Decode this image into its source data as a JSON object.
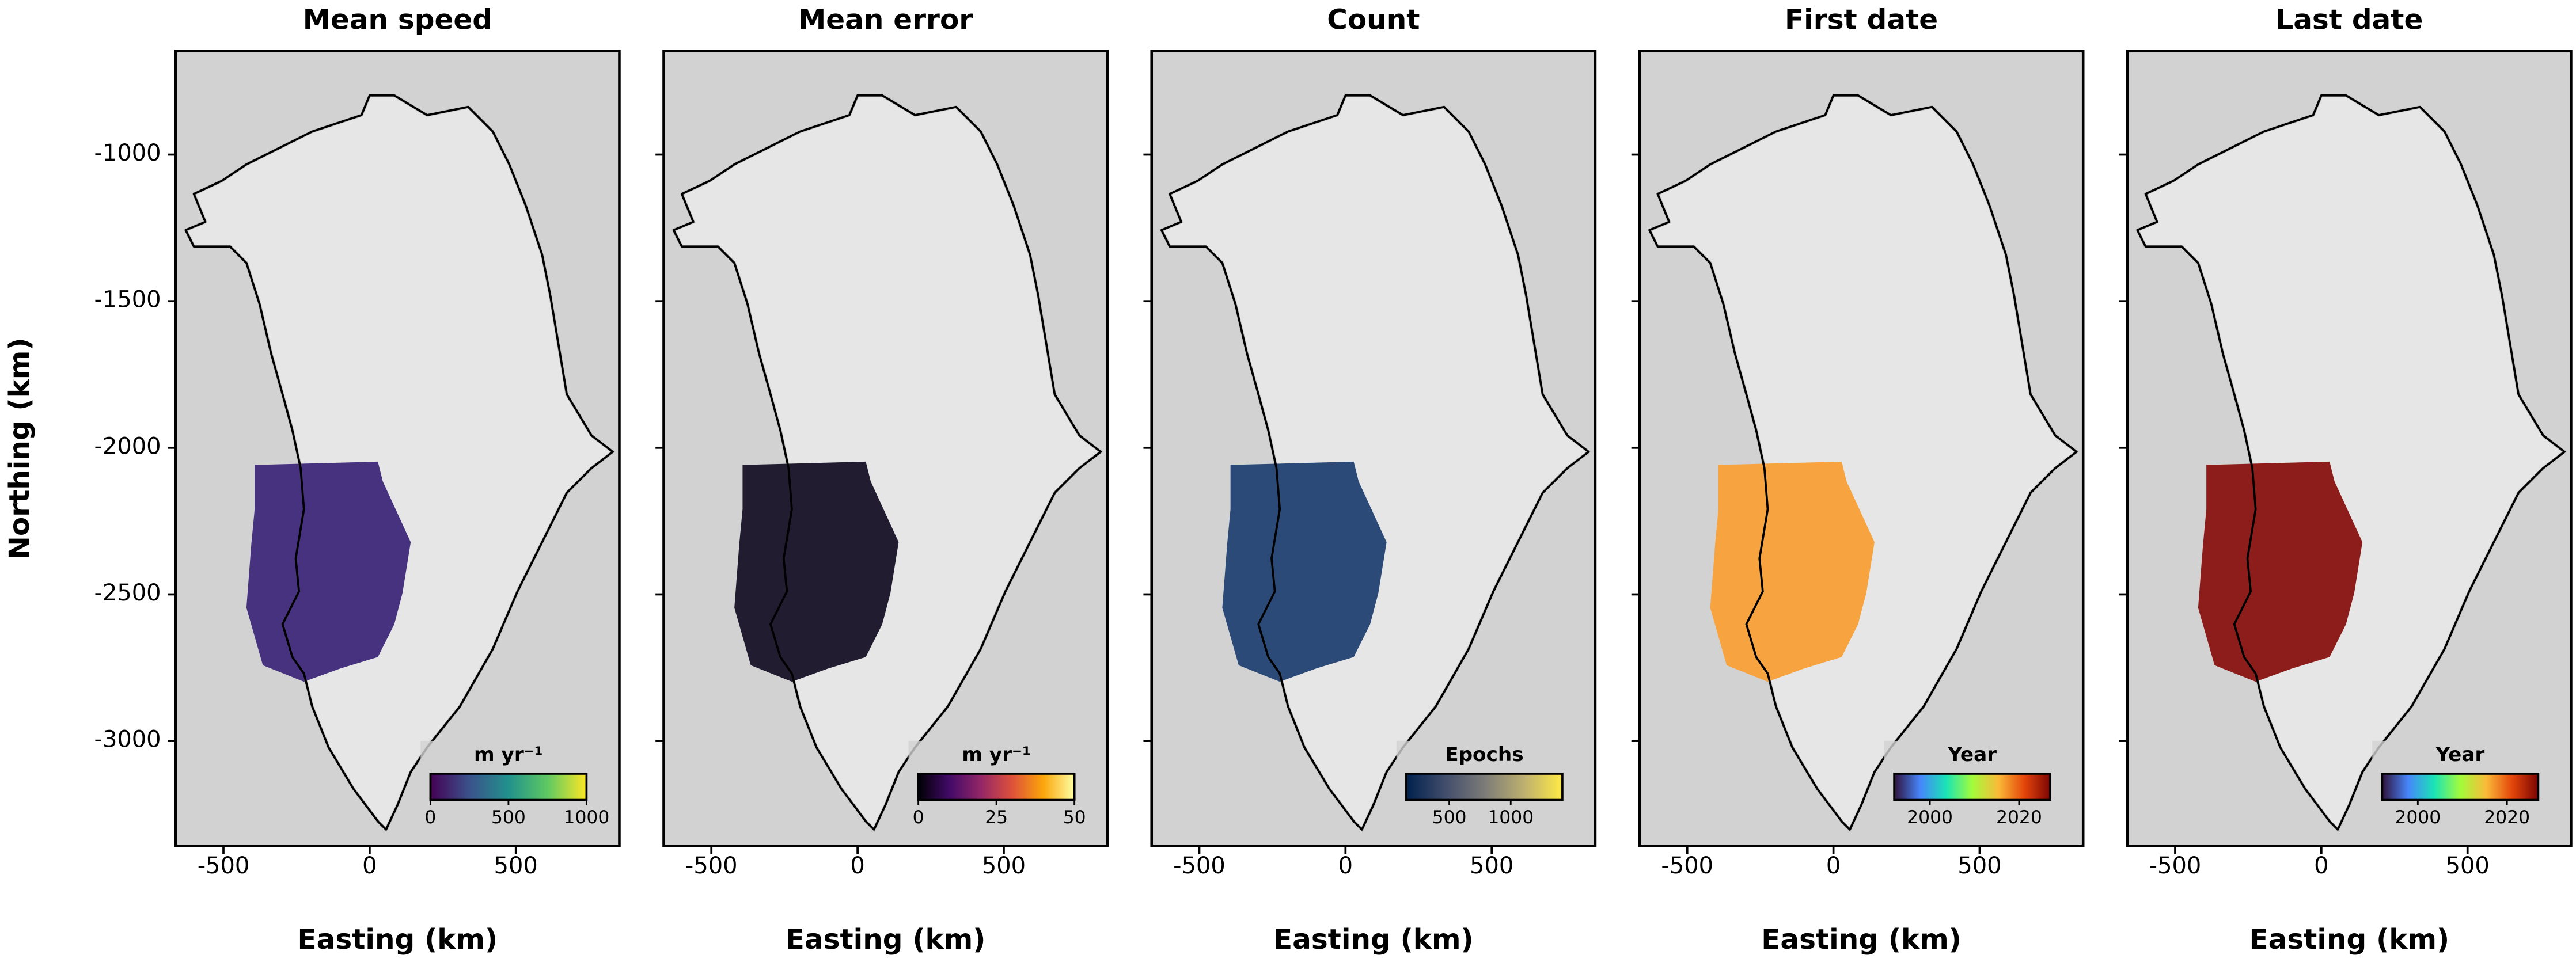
{
  "chart_data": [
    {
      "type": "map",
      "title": "Mean speed",
      "xlabel": "Easting (km)",
      "ylabel": "Northing (km)",
      "xlim": [
        -663,
        854
      ],
      "ylim": [
        -3358,
        -647
      ],
      "xticks": [
        -500,
        0,
        500
      ],
      "yticks": [
        -1000,
        -1500,
        -2000,
        -2500,
        -3000
      ],
      "ytick_labels": true,
      "fill_color": "#46327e",
      "colorbar": {
        "label": "m yr⁻¹",
        "lim": [
          0,
          1000
        ],
        "ticks": [
          0,
          500,
          1000
        ],
        "colors": [
          "#440154",
          "#3b528b",
          "#21918c",
          "#5ec962",
          "#fde725"
        ]
      }
    },
    {
      "type": "map",
      "title": "Mean error",
      "xlabel": "Easting (km)",
      "xlim": [
        -663,
        854
      ],
      "ylim": [
        -3358,
        -647
      ],
      "xticks": [
        -500,
        0,
        500
      ],
      "yticks": [
        -1000,
        -1500,
        -2000,
        -2500,
        -3000
      ],
      "ytick_labels": false,
      "fill_color": "#211c30",
      "colorbar": {
        "label": "m yr⁻¹",
        "lim": [
          0,
          50
        ],
        "ticks": [
          0,
          25,
          50
        ],
        "colors": [
          "#000004",
          "#420a68",
          "#932667",
          "#dd513a",
          "#fca50a",
          "#fcffa4"
        ]
      }
    },
    {
      "type": "map",
      "title": "Count",
      "xlabel": "Easting (km)",
      "xlim": [
        -663,
        854
      ],
      "ylim": [
        -3358,
        -647
      ],
      "xticks": [
        -500,
        0,
        500
      ],
      "yticks": [
        -1000,
        -1500,
        -2000,
        -2500,
        -3000
      ],
      "ytick_labels": false,
      "fill_color": "#2c4a78",
      "colorbar": {
        "label": "Epochs",
        "lim": [
          150,
          1420
        ],
        "ticks": [
          500,
          1000
        ],
        "colors": [
          "#00204d",
          "#414d6b",
          "#7c7b78",
          "#bcaf6f",
          "#ffea46"
        ]
      }
    },
    {
      "type": "map",
      "title": "First date",
      "xlabel": "Easting (km)",
      "xlim": [
        -663,
        854
      ],
      "ylim": [
        -3358,
        -647
      ],
      "xticks": [
        -500,
        0,
        500
      ],
      "yticks": [
        -1000,
        -1500,
        -2000,
        -2500,
        -3000
      ],
      "ytick_labels": false,
      "fill_color": "#f7a440",
      "colorbar": {
        "label": "Year",
        "lim": [
          1992,
          2027
        ],
        "ticks": [
          2000,
          2020
        ],
        "colors": [
          "#30123b",
          "#4686fb",
          "#1ae4b6",
          "#a2fc3c",
          "#fabA39",
          "#e4460a",
          "#7a0403"
        ]
      }
    },
    {
      "type": "map",
      "title": "Last date",
      "xlabel": "Easting (km)",
      "xlim": [
        -663,
        854
      ],
      "ylim": [
        -3358,
        -647
      ],
      "xticks": [
        -500,
        0,
        500
      ],
      "yticks": [
        -1000,
        -1500,
        -2000,
        -2500,
        -3000
      ],
      "ytick_labels": false,
      "fill_color": "#8c1d1a",
      "colorbar": {
        "label": "Year",
        "lim": [
          1992,
          2027
        ],
        "ticks": [
          2000,
          2020
        ],
        "colors": [
          "#30123b",
          "#4686fb",
          "#1ae4b6",
          "#a2fc3c",
          "#fabA39",
          "#e4460a",
          "#7a0403"
        ]
      }
    }
  ]
}
